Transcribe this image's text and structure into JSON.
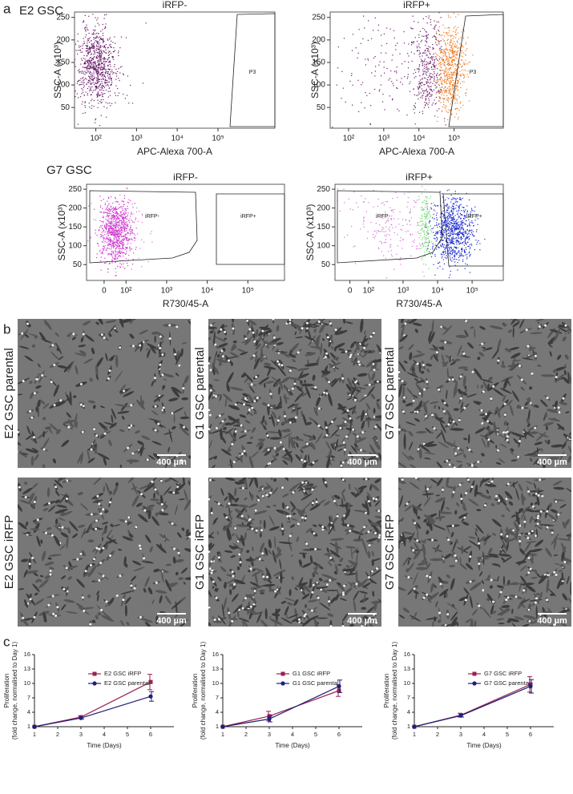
{
  "panel_labels": [
    "a",
    "b",
    "c"
  ],
  "flow": {
    "groups": [
      "E2 GSC",
      "G7 GSC"
    ],
    "plots": [
      {
        "title": "iRFP-",
        "xlabel": "APC-Alexa 700-A",
        "ylabel": "SSC-A  (x10³)",
        "xscale": "log",
        "xlim": [
          30,
          2500000
        ],
        "ylim": [
          4,
          262
        ],
        "xticks": [
          {
            "value": 100,
            "label": "10²"
          },
          {
            "value": 1000,
            "label": "10³"
          },
          {
            "value": 10000,
            "label": "10⁴"
          },
          {
            "value": 100000,
            "label": "10⁵"
          }
        ],
        "yticks": [
          50,
          100,
          150,
          200,
          250
        ],
        "gates": [
          "P3"
        ]
      },
      {
        "title": "iRFP+",
        "xlabel": "APC-Alexa 700-A",
        "ylabel": "SSC-A  (x10³)",
        "xscale": "log",
        "xlim": [
          30,
          2500000
        ],
        "ylim": [
          4,
          262
        ],
        "xticks": [
          {
            "value": 100,
            "label": "10²"
          },
          {
            "value": 1000,
            "label": "10³"
          },
          {
            "value": 10000,
            "label": "10⁴"
          },
          {
            "value": 100000,
            "label": "10⁵"
          }
        ],
        "yticks": [
          50,
          100,
          150,
          200,
          250
        ],
        "gates": [
          "P3"
        ]
      },
      {
        "title": "iRFP-",
        "xlabel": "R730/45-A",
        "ylabel": "SSC-A (x10³)",
        "xscale": "biexponential",
        "xlim": [
          -80,
          800000
        ],
        "ylim": [
          8,
          263
        ],
        "xticks": [
          0,
          {
            "value": 100,
            "label": "10²"
          },
          {
            "value": 1000,
            "label": "10³"
          },
          {
            "value": 10000,
            "label": "10⁴"
          },
          {
            "value": 100000,
            "label": "10⁵"
          }
        ],
        "yticks": [
          50,
          100,
          150,
          200,
          250
        ],
        "gates": [
          "iRFP-",
          "iRFP+"
        ]
      },
      {
        "title": "iRFP+",
        "xlabel": "R730/45-A",
        "ylabel": "SSC-A (x10³)",
        "xscale": "biexponential",
        "xlim": [
          -80,
          800000
        ],
        "ylim": [
          8,
          263
        ],
        "xticks": [
          0,
          {
            "value": 100,
            "label": "10²"
          },
          {
            "value": 1000,
            "label": "10³"
          },
          {
            "value": 10000,
            "label": "10⁴"
          },
          {
            "value": 100000,
            "label": "10⁵"
          }
        ],
        "yticks": [
          50,
          100,
          150,
          200,
          250
        ],
        "gates": [
          "iRFP-",
          "iRFP+"
        ]
      }
    ]
  },
  "micrographs": {
    "scale_bar": "400 µm",
    "images": [
      "E2 GSC parental",
      "G1 GSC parental",
      "G7 GSC parental",
      "E2 GSC iRFP",
      "G1 GSC iRFP",
      "G7 GSC iRFP"
    ]
  },
  "chart_data": [
    {
      "type": "line",
      "xlabel": "Time (Days)",
      "ylabel": [
        "Proliferation",
        "(fold change, normalised to Day 1)"
      ],
      "x": [
        1,
        3,
        6
      ],
      "xlim": [
        1,
        7
      ],
      "xticks": [
        1,
        2,
        3,
        4,
        5,
        6
      ],
      "ylim": [
        1,
        16
      ],
      "yticks": [
        1,
        4,
        7,
        10,
        13,
        16
      ],
      "series": [
        {
          "name": "E2 GSC iRFP",
          "color": "#9c1f52",
          "marker": "square",
          "values": [
            1,
            3,
            10.3
          ],
          "errors": [
            0,
            0.2,
            1.6
          ]
        },
        {
          "name": "E2 GSC parental",
          "color": "#1f1f78",
          "marker": "circle",
          "values": [
            1,
            2.8,
            7.3
          ],
          "errors": [
            0,
            0.2,
            1.0
          ]
        }
      ]
    },
    {
      "type": "line",
      "xlabel": "Time (Days)",
      "ylabel": [
        "Proliferation",
        "(fold change, normalised to Day 1)"
      ],
      "x": [
        1,
        3,
        6
      ],
      "xlim": [
        1,
        7
      ],
      "xticks": [
        1,
        2,
        3,
        4,
        5,
        6
      ],
      "ylim": [
        1,
        16
      ],
      "yticks": [
        1,
        4,
        7,
        10,
        13,
        16
      ],
      "series": [
        {
          "name": "G1 GSC iRFP",
          "color": "#9c1f52",
          "marker": "square",
          "values": [
            1,
            3.2,
            8.5
          ],
          "errors": [
            0,
            1.0,
            1.2
          ]
        },
        {
          "name": "G1 GSC parental",
          "color": "#1f1f78",
          "marker": "circle",
          "values": [
            1,
            2.6,
            9.4
          ],
          "errors": [
            0,
            0.6,
            1.3
          ]
        }
      ]
    },
    {
      "type": "line",
      "xlabel": "Time (Days)",
      "ylabel": [
        "Proliferation",
        "(fold change, normalised to Day 1)"
      ],
      "x": [
        1,
        3,
        6
      ],
      "xlim": [
        1,
        7
      ],
      "xticks": [
        1,
        2,
        3,
        4,
        5,
        6
      ],
      "ylim": [
        1,
        16
      ],
      "yticks": [
        1,
        4,
        7,
        10,
        13,
        16
      ],
      "series": [
        {
          "name": "G7 GSC iRFP",
          "color": "#9c1f52",
          "marker": "square",
          "values": [
            1,
            3.4,
            9.8
          ],
          "errors": [
            0,
            0.4,
            1.6
          ]
        },
        {
          "name": "G7 GSC parental",
          "color": "#1f1f78",
          "marker": "circle",
          "values": [
            1,
            3.3,
            9.4
          ],
          "errors": [
            0,
            0.3,
            1.4
          ]
        }
      ]
    }
  ]
}
